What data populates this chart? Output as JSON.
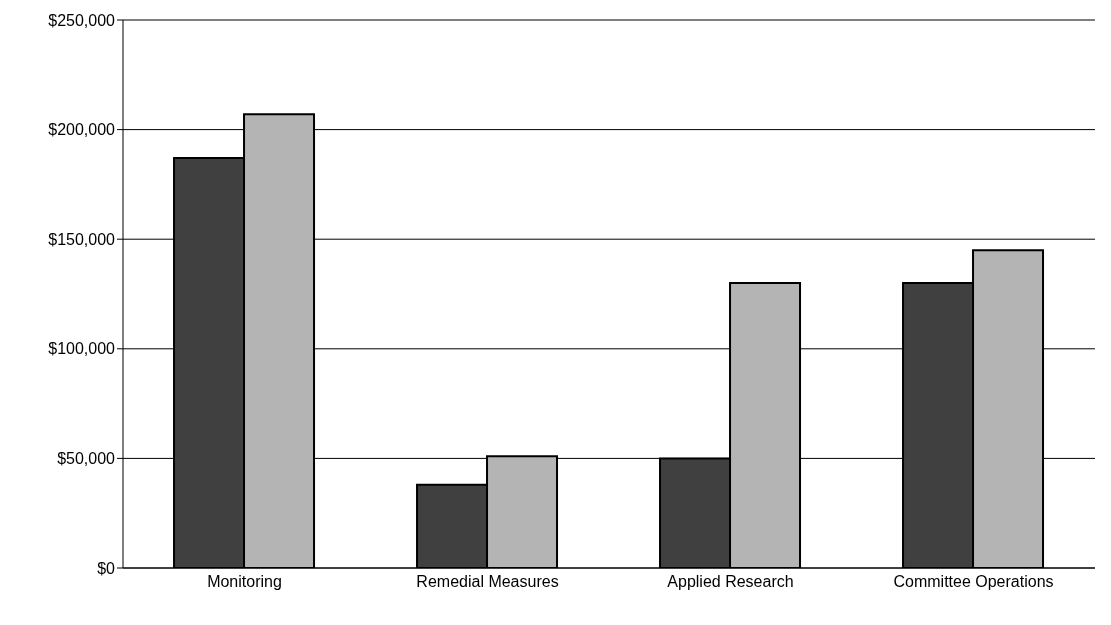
{
  "chart_data": {
    "type": "bar",
    "categories": [
      "Monitoring",
      "Remedial Measures",
      "Applied Research",
      "Committee Operations"
    ],
    "series": [
      {
        "color": "#404040",
        "values": [
          187000,
          38000,
          50000,
          130000
        ]
      },
      {
        "color": "#b4b4b4",
        "values": [
          207000,
          51000,
          130000,
          145000
        ]
      }
    ],
    "ylim": [
      0,
      250000
    ],
    "yticks": [
      {
        "value": 0,
        "label": "$0"
      },
      {
        "value": 50000,
        "label": "$50,000"
      },
      {
        "value": 100000,
        "label": "$100,000"
      },
      {
        "value": 150000,
        "label": "$150,000"
      },
      {
        "value": 200000,
        "label": "$200,000"
      },
      {
        "value": 250000,
        "label": "$250,000"
      }
    ],
    "grid": "y"
  }
}
